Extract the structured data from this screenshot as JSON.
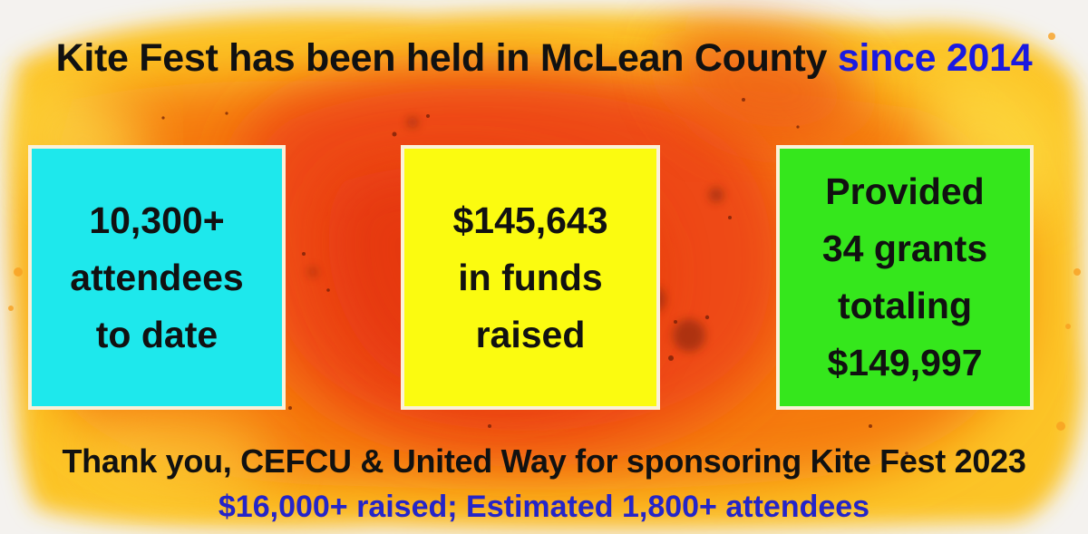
{
  "headline": {
    "main": "Kite Fest has been held in McLean County",
    "accent": "since 2014"
  },
  "stats": [
    {
      "lines": [
        "10,300+",
        "attendees",
        "to date"
      ],
      "color": "#1ee8ec"
    },
    {
      "lines": [
        "$145,643",
        "in funds",
        "raised"
      ],
      "color": "#fbfb10"
    },
    {
      "lines": [
        "Provided",
        "34 grants",
        "totaling",
        "$149,997"
      ],
      "color": "#35e71c"
    }
  ],
  "thanks": "Thank you, CEFCU & United Way for sponsoring Kite Fest 2023",
  "sub": "$16,000+ raised; Estimated 1,800+ attendees",
  "colors": {
    "accent_blue": "#1a1ae0",
    "sub_blue": "#2525c8",
    "watercolor_orange": "#f57a10",
    "watercolor_yellow": "#fcc426"
  }
}
